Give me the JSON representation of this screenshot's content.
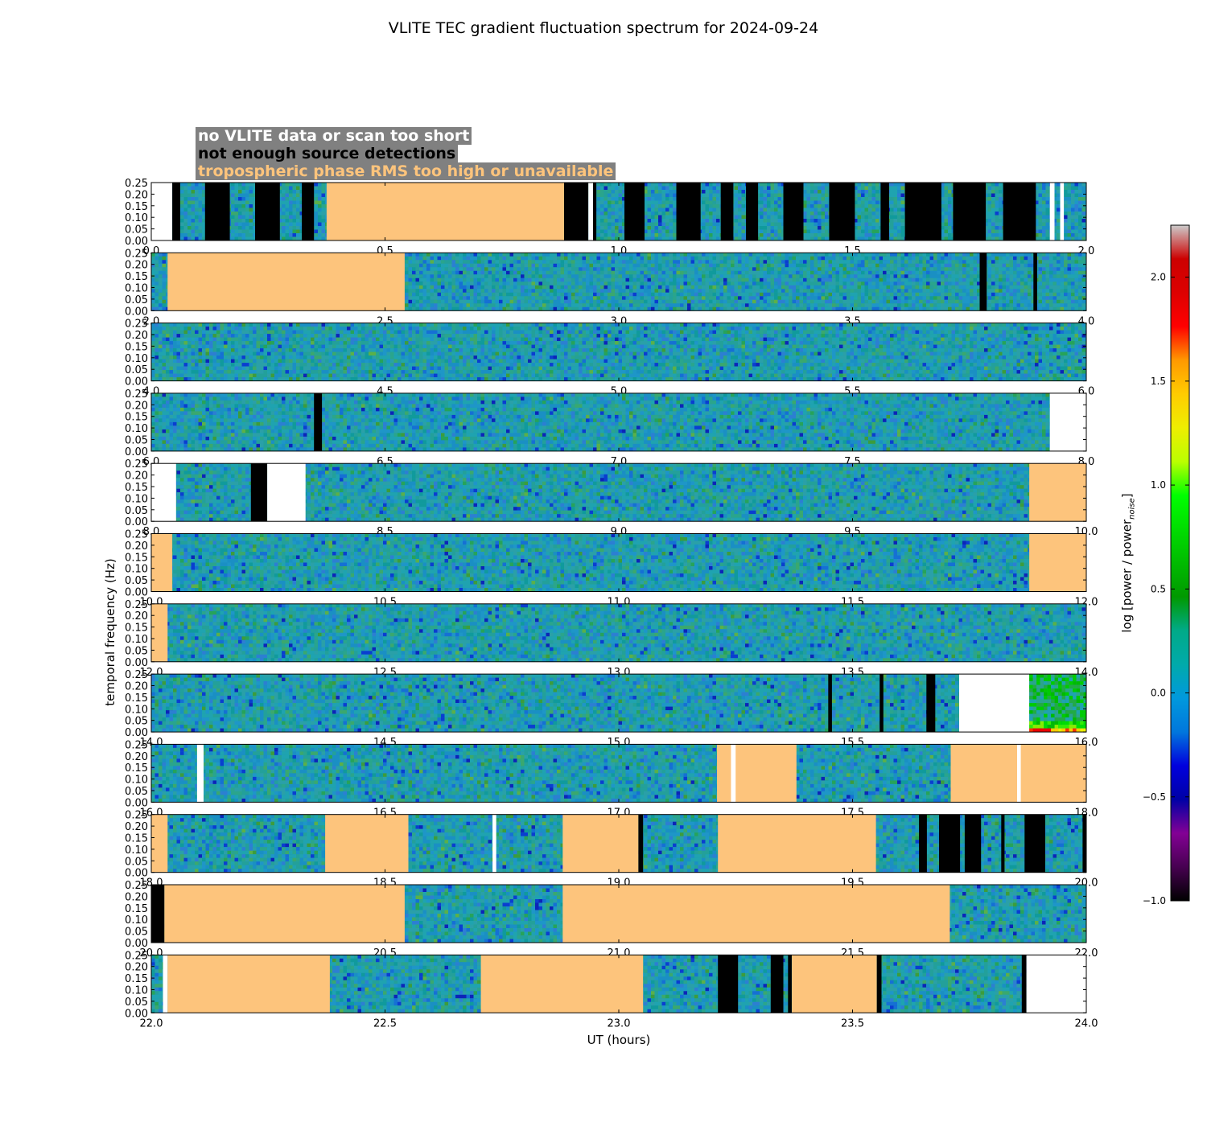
{
  "title": "VLITE TEC gradient fluctuation spectrum for 2024-09-24",
  "legend": [
    {
      "label": "no VLITE data or scan too short",
      "color": "#ffffff",
      "bg": "#808080"
    },
    {
      "label": "not enough source detections",
      "color": "#000000",
      "bg": "#808080"
    },
    {
      "label": "tropospheric phase RMS too high or unavailable",
      "color": "#fdc47c",
      "bg": "#808080"
    }
  ],
  "chart_data": {
    "type": "heatmap",
    "title": "VLITE TEC gradient fluctuation spectrum for 2024-09-24",
    "xlabel": "UT (hours)",
    "ylabel": "temporal frequency (Hz)",
    "colorbar_label": "log [power / power",
    "colorbar_label_sub": "noise",
    "colorbar_label_end": "]",
    "colorbar_range": [
      -1.0,
      2.25
    ],
    "colorbar_ticks": [
      "−1.0",
      "−0.5",
      "0.0",
      "0.5",
      "1.0",
      "1.5",
      "2.0"
    ],
    "colorbar_tick_values": [
      -1.0,
      -0.5,
      0.0,
      0.5,
      1.0,
      1.5,
      2.0
    ],
    "colormap": "nipy_spectral",
    "ylim": [
      0,
      0.25
    ],
    "y_ticks": [
      "0.00",
      "0.05",
      "0.10",
      "0.15",
      "0.20",
      "0.25"
    ],
    "flag_colors": {
      "nodata": "#ffffff",
      "fewdet": "#000000",
      "trop": "#fdc47c"
    },
    "panels": [
      {
        "xlim": [
          0.0,
          2.0
        ],
        "x_ticks": [
          "0.0",
          "0.5",
          "1.0",
          "1.5",
          "2.0"
        ],
        "flags": [
          [
            0.0,
            0.045,
            "nodata"
          ],
          [
            0.045,
            0.062,
            "fewdet"
          ],
          [
            0.115,
            0.168,
            "fewdet"
          ],
          [
            0.222,
            0.275,
            "fewdet"
          ],
          [
            0.322,
            0.348,
            "fewdet"
          ],
          [
            0.375,
            0.883,
            "trop"
          ],
          [
            0.883,
            0.935,
            "fewdet"
          ],
          [
            0.935,
            0.945,
            "nodata"
          ],
          [
            0.945,
            0.952,
            "fewdet"
          ],
          [
            1.012,
            1.055,
            "fewdet"
          ],
          [
            1.123,
            1.175,
            "fewdet"
          ],
          [
            1.218,
            1.245,
            "fewdet"
          ],
          [
            1.272,
            1.298,
            "fewdet"
          ],
          [
            1.352,
            1.395,
            "fewdet"
          ],
          [
            1.45,
            1.505,
            "fewdet"
          ],
          [
            1.56,
            1.578,
            "fewdet"
          ],
          [
            1.612,
            1.69,
            "fewdet"
          ],
          [
            1.715,
            1.785,
            "fewdet"
          ],
          [
            1.822,
            1.892,
            "fewdet"
          ],
          [
            1.922,
            1.932,
            "nodata"
          ],
          [
            1.944,
            1.952,
            "nodata"
          ]
        ]
      },
      {
        "xlim": [
          2.0,
          4.0
        ],
        "x_ticks": [
          "2.0",
          "2.5",
          "3.0",
          "3.5",
          "4.0"
        ],
        "flags": [
          [
            2.035,
            2.542,
            "trop"
          ],
          [
            3.772,
            3.787,
            "fewdet"
          ],
          [
            3.887,
            3.895,
            "fewdet"
          ]
        ]
      },
      {
        "xlim": [
          4.0,
          6.0
        ],
        "x_ticks": [
          "4.0",
          "4.5",
          "5.0",
          "5.5",
          "6.0"
        ],
        "flags": []
      },
      {
        "xlim": [
          6.0,
          8.0
        ],
        "x_ticks": [
          "6.0",
          "6.5",
          "7.0",
          "7.5",
          "8.0"
        ],
        "flags": [
          [
            6.348,
            6.365,
            "fewdet"
          ],
          [
            7.922,
            8.0,
            "nodata"
          ]
        ]
      },
      {
        "xlim": [
          8.0,
          10.0
        ],
        "x_ticks": [
          "8.0",
          "8.5",
          "9.0",
          "9.5",
          "10.0"
        ],
        "flags": [
          [
            8.0,
            8.053,
            "nodata"
          ],
          [
            8.213,
            8.248,
            "fewdet"
          ],
          [
            8.248,
            8.33,
            "nodata"
          ],
          [
            9.878,
            10.0,
            "trop"
          ]
        ]
      },
      {
        "xlim": [
          10.0,
          12.0
        ],
        "x_ticks": [
          "10.0",
          "10.5",
          "11.0",
          "11.5",
          "12.0"
        ],
        "flags": [
          [
            10.0,
            10.045,
            "trop"
          ],
          [
            11.878,
            12.0,
            "trop"
          ]
        ]
      },
      {
        "xlim": [
          12.0,
          14.0
        ],
        "x_ticks": [
          "12.0",
          "12.5",
          "13.0",
          "13.5",
          "14.0"
        ],
        "flags": [
          [
            12.0,
            12.035,
            "trop"
          ]
        ]
      },
      {
        "xlim": [
          14.0,
          16.0
        ],
        "x_ticks": [
          "14.0",
          "14.5",
          "15.0",
          "15.5",
          "16.0"
        ],
        "flags": [
          [
            15.448,
            15.456,
            "fewdet"
          ],
          [
            15.558,
            15.566,
            "fewdet"
          ],
          [
            15.658,
            15.677,
            "fewdet"
          ],
          [
            15.728,
            15.878,
            "nodata"
          ]
        ]
      },
      {
        "xlim": [
          16.0,
          18.0
        ],
        "x_ticks": [
          "16.0",
          "16.5",
          "17.0",
          "17.5",
          "18.0"
        ],
        "flags": [
          [
            16.098,
            16.112,
            "nodata"
          ],
          [
            17.21,
            17.38,
            "trop"
          ],
          [
            17.24,
            17.25,
            "nodata"
          ],
          [
            17.71,
            18.0,
            "trop"
          ],
          [
            17.852,
            17.86,
            "nodata"
          ]
        ]
      },
      {
        "xlim": [
          18.0,
          20.0
        ],
        "x_ticks": [
          "18.0",
          "18.5",
          "19.0",
          "19.5",
          "20.0"
        ],
        "flags": [
          [
            18.0,
            18.035,
            "trop"
          ],
          [
            18.372,
            18.55,
            "trop"
          ],
          [
            18.73,
            18.738,
            "nodata"
          ],
          [
            18.88,
            19.042,
            "trop"
          ],
          [
            19.042,
            19.052,
            "fewdet"
          ],
          [
            19.212,
            19.55,
            "trop"
          ],
          [
            19.642,
            19.659,
            "fewdet"
          ],
          [
            19.685,
            19.73,
            "fewdet"
          ],
          [
            19.74,
            19.775,
            "fewdet"
          ],
          [
            19.818,
            19.825,
            "fewdet"
          ],
          [
            19.868,
            19.912,
            "fewdet"
          ],
          [
            19.992,
            20.0,
            "fewdet"
          ]
        ]
      },
      {
        "xlim": [
          20.0,
          22.0
        ],
        "x_ticks": [
          "20.0",
          "20.5",
          "21.0",
          "21.5",
          "22.0"
        ],
        "flags": [
          [
            20.0,
            20.028,
            "fewdet"
          ],
          [
            20.028,
            20.542,
            "trop"
          ],
          [
            20.88,
            21.708,
            "trop"
          ]
        ]
      },
      {
        "xlim": [
          22.0,
          24.0
        ],
        "x_ticks": [
          "22.0",
          "22.5",
          "23.0",
          "23.5",
          "24.0"
        ],
        "flags": [
          [
            22.025,
            22.035,
            "nodata"
          ],
          [
            22.035,
            22.382,
            "trop"
          ],
          [
            22.705,
            23.052,
            "trop"
          ],
          [
            23.212,
            23.255,
            "fewdet"
          ],
          [
            23.325,
            23.352,
            "fewdet"
          ],
          [
            23.362,
            23.37,
            "fewdet"
          ],
          [
            23.37,
            23.552,
            "trop"
          ],
          [
            23.552,
            23.562,
            "fewdet"
          ],
          [
            23.862,
            23.872,
            "fewdet"
          ],
          [
            23.872,
            24.0,
            "nodata"
          ]
        ]
      }
    ]
  }
}
